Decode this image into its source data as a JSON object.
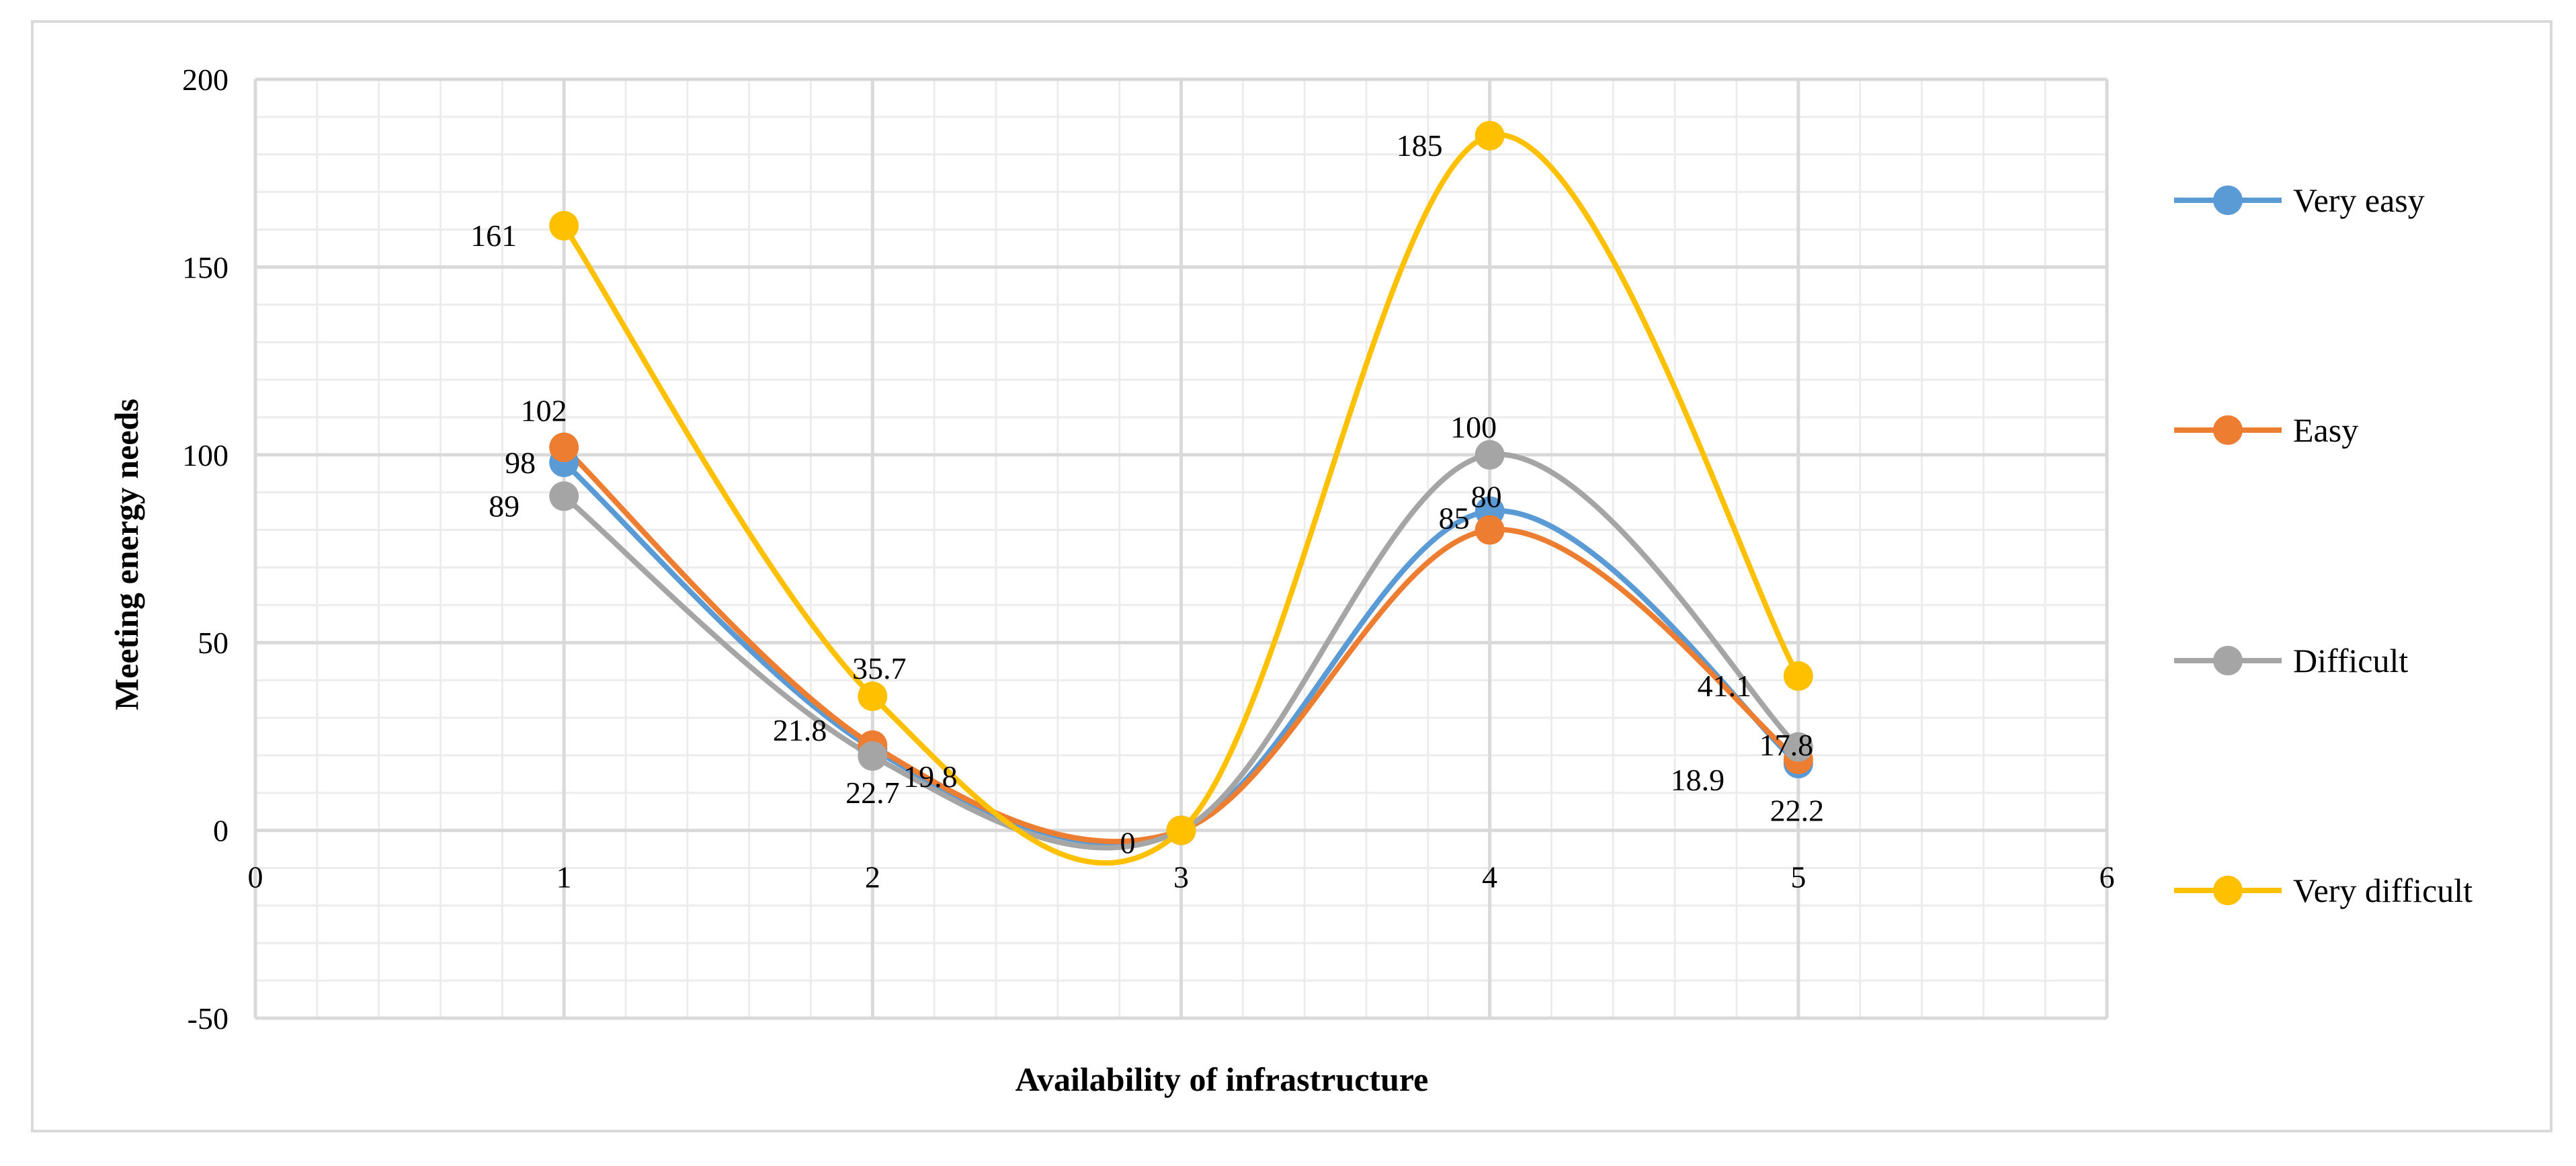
{
  "chart_data": {
    "type": "line",
    "smooth": true,
    "title": "",
    "xlabel": "Availability of infrastructure",
    "ylabel": "Meeting energy needs",
    "xlim": [
      0,
      6
    ],
    "ylim": [
      -50,
      200
    ],
    "xticks": [
      0,
      1,
      2,
      3,
      4,
      5,
      6
    ],
    "yticks": [
      -50,
      0,
      50,
      100,
      150,
      200
    ],
    "grid": true,
    "legend_position": "right",
    "x": [
      1,
      2,
      3,
      4,
      5
    ],
    "series": [
      {
        "name": "Very easy",
        "color": "#5b9bd5",
        "values": [
          98,
          21.8,
          0,
          85,
          17.8
        ],
        "labels": [
          "98",
          "21.8",
          "",
          "85",
          "17.8"
        ]
      },
      {
        "name": "Easy",
        "color": "#ed7d31",
        "values": [
          102,
          22.7,
          0,
          80,
          18.9
        ],
        "labels": [
          "102",
          "22.7",
          "",
          "80",
          "18.9"
        ]
      },
      {
        "name": "Difficult",
        "color": "#a5a5a5",
        "values": [
          89,
          19.8,
          0,
          100,
          22.2
        ],
        "labels": [
          "89",
          "19.8",
          "",
          "100",
          "22.2"
        ]
      },
      {
        "name": "Very difficult",
        "color": "#ffc000",
        "values": [
          161,
          35.7,
          0,
          185,
          41.1
        ],
        "labels": [
          "161",
          "35.7",
          "0",
          "185",
          "41.1"
        ]
      }
    ]
  }
}
